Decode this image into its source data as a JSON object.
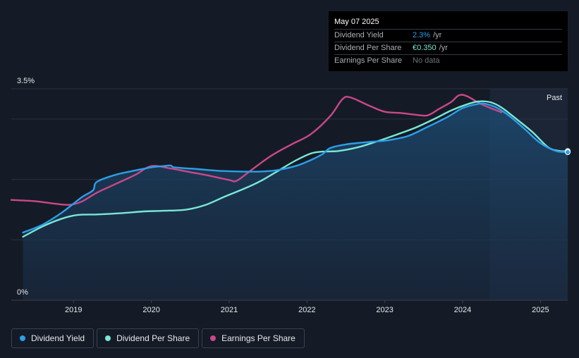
{
  "chart_data": {
    "type": "line",
    "ylabel_top": "3.5%",
    "ylabel_bottom": "0%",
    "ylim": [
      0,
      3.5
    ],
    "xlim": [
      2018.2,
      2025.35
    ],
    "x_ticks": [
      "2019",
      "2020",
      "2021",
      "2022",
      "2023",
      "2024",
      "2025"
    ],
    "forecast_start": 2024.35,
    "past_label": "Past",
    "series": [
      {
        "name": "Dividend Yield",
        "color": "#2c9fe9",
        "area": true,
        "points": [
          [
            2018.35,
            1.12
          ],
          [
            2018.6,
            1.25
          ],
          [
            2018.85,
            1.45
          ],
          [
            2019.1,
            1.7
          ],
          [
            2019.25,
            1.82
          ],
          [
            2019.3,
            1.96
          ],
          [
            2019.55,
            2.08
          ],
          [
            2019.8,
            2.15
          ],
          [
            2020.0,
            2.2
          ],
          [
            2020.15,
            2.22
          ],
          [
            2020.25,
            2.23
          ],
          [
            2020.3,
            2.2
          ],
          [
            2020.6,
            2.17
          ],
          [
            2020.9,
            2.14
          ],
          [
            2021.15,
            2.13
          ],
          [
            2021.4,
            2.13
          ],
          [
            2021.6,
            2.15
          ],
          [
            2021.85,
            2.22
          ],
          [
            2022.05,
            2.32
          ],
          [
            2022.2,
            2.42
          ],
          [
            2022.3,
            2.52
          ],
          [
            2022.5,
            2.58
          ],
          [
            2022.8,
            2.62
          ],
          [
            2023.05,
            2.65
          ],
          [
            2023.3,
            2.72
          ],
          [
            2023.55,
            2.87
          ],
          [
            2023.8,
            3.03
          ],
          [
            2024.0,
            3.18
          ],
          [
            2024.2,
            3.25
          ],
          [
            2024.3,
            3.25
          ],
          [
            2024.45,
            3.18
          ],
          [
            2024.6,
            3.05
          ],
          [
            2024.8,
            2.83
          ],
          [
            2025.0,
            2.6
          ],
          [
            2025.2,
            2.47
          ],
          [
            2025.35,
            2.45
          ]
        ]
      },
      {
        "name": "Dividend Per Share",
        "color": "#7ae7d6",
        "area": false,
        "points": [
          [
            2018.35,
            1.05
          ],
          [
            2018.6,
            1.22
          ],
          [
            2018.85,
            1.35
          ],
          [
            2019.05,
            1.41
          ],
          [
            2019.3,
            1.42
          ],
          [
            2019.6,
            1.44
          ],
          [
            2019.9,
            1.47
          ],
          [
            2020.15,
            1.48
          ],
          [
            2020.45,
            1.5
          ],
          [
            2020.7,
            1.58
          ],
          [
            2020.95,
            1.72
          ],
          [
            2021.2,
            1.85
          ],
          [
            2021.4,
            1.97
          ],
          [
            2021.6,
            2.12
          ],
          [
            2021.85,
            2.31
          ],
          [
            2022.05,
            2.43
          ],
          [
            2022.2,
            2.46
          ],
          [
            2022.4,
            2.47
          ],
          [
            2022.65,
            2.53
          ],
          [
            2022.9,
            2.63
          ],
          [
            2023.15,
            2.74
          ],
          [
            2023.4,
            2.86
          ],
          [
            2023.65,
            3.01
          ],
          [
            2023.85,
            3.14
          ],
          [
            2024.05,
            3.24
          ],
          [
            2024.2,
            3.29
          ],
          [
            2024.35,
            3.28
          ],
          [
            2024.5,
            3.19
          ],
          [
            2024.7,
            2.99
          ],
          [
            2024.9,
            2.78
          ],
          [
            2025.1,
            2.53
          ],
          [
            2025.25,
            2.47
          ],
          [
            2025.35,
            2.47
          ]
        ]
      },
      {
        "name": "Earnings Per Share",
        "color": "#c9488a",
        "area": false,
        "points": [
          [
            2018.2,
            1.66
          ],
          [
            2018.5,
            1.64
          ],
          [
            2018.75,
            1.6
          ],
          [
            2018.95,
            1.58
          ],
          [
            2019.1,
            1.63
          ],
          [
            2019.3,
            1.78
          ],
          [
            2019.55,
            1.93
          ],
          [
            2019.8,
            2.08
          ],
          [
            2020.0,
            2.22
          ],
          [
            2020.25,
            2.18
          ],
          [
            2020.5,
            2.12
          ],
          [
            2020.75,
            2.06
          ],
          [
            2021.0,
            1.99
          ],
          [
            2021.1,
            1.98
          ],
          [
            2021.3,
            2.17
          ],
          [
            2021.55,
            2.4
          ],
          [
            2021.8,
            2.58
          ],
          [
            2022.05,
            2.75
          ],
          [
            2022.3,
            3.05
          ],
          [
            2022.45,
            3.32
          ],
          [
            2022.55,
            3.36
          ],
          [
            2022.8,
            3.22
          ],
          [
            2023.0,
            3.12
          ],
          [
            2023.2,
            3.1
          ],
          [
            2023.4,
            3.07
          ],
          [
            2023.55,
            3.06
          ],
          [
            2023.7,
            3.17
          ],
          [
            2023.85,
            3.28
          ],
          [
            2023.95,
            3.39
          ],
          [
            2024.05,
            3.38
          ],
          [
            2024.25,
            3.24
          ],
          [
            2024.5,
            3.11
          ]
        ]
      }
    ]
  },
  "tooltip": {
    "date": "May 07 2025",
    "rows": [
      {
        "label": "Dividend Yield",
        "value": "2.3%",
        "unit": "/yr"
      },
      {
        "label": "Dividend Per Share",
        "value": "€0.350",
        "unit": "/yr"
      },
      {
        "label": "Earnings Per Share",
        "value": "No data"
      }
    ]
  },
  "legend": [
    {
      "label": "Dividend Yield",
      "color": "#2c9fe9"
    },
    {
      "label": "Dividend Per Share",
      "color": "#7ae7d6"
    },
    {
      "label": "Earnings Per Share",
      "color": "#c9488a"
    }
  ]
}
